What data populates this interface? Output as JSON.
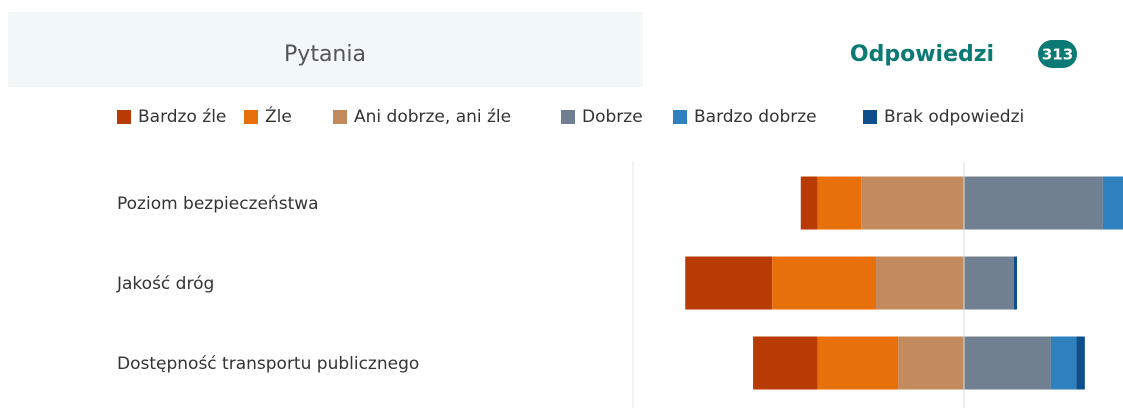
{
  "tabs": {
    "questions": "Pytania",
    "responses": "Odpowiedzi",
    "count": 313
  },
  "chart_data": {
    "type": "diverging-bar",
    "categories": [
      "Poziom bezpieczeństwa",
      "Jakość dróg",
      "Dostępność transportu publicznego"
    ],
    "series": [
      {
        "name": "Bardzo źle",
        "color": "#b83b05",
        "values": [
          16,
          82,
          61
        ]
      },
      {
        "name": "Źle",
        "color": "#e8700a",
        "values": [
          41,
          98,
          76
        ]
      },
      {
        "name": "Ani dobrze, ani źle",
        "color": "#c38a5e",
        "values": [
          97,
          83,
          62
        ]
      },
      {
        "name": "Dobrze",
        "color": "#718090",
        "values": [
          131,
          47,
          82
        ]
      },
      {
        "name": "Bardzo dobrze",
        "color": "#2e80bf",
        "values": [
          28,
          0,
          24
        ]
      },
      {
        "name": "Brak odpowiedzi",
        "color": "#0d4f8c",
        "values": [
          0,
          3,
          8
        ]
      }
    ]
  }
}
